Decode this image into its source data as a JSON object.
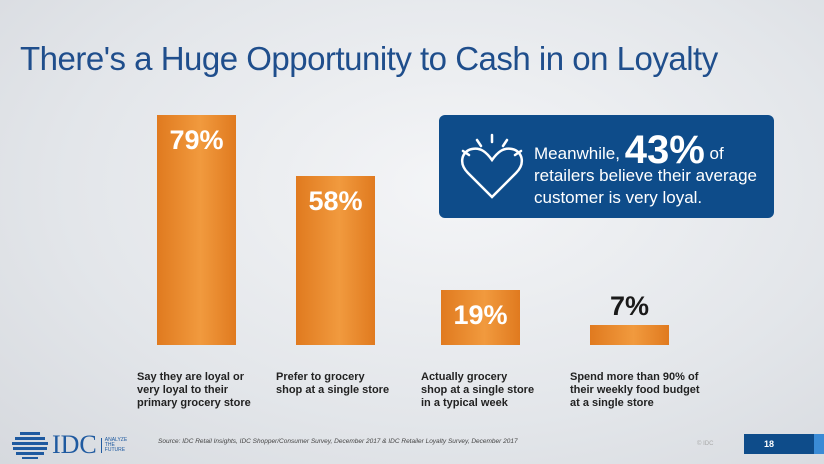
{
  "slide": {
    "title": "There's a Huge Opportunity to Cash in on Loyalty",
    "page_number": "18",
    "copyright": "© IDC",
    "source": "Source: IDC Retail Insights, IDC Shopper/Consumer Survey, December 2017 & IDC Retailer Loyalty Survey, December 2017",
    "logo": {
      "name": "IDC",
      "tagline": [
        "ANALYZE",
        "THE",
        "FUTURE"
      ]
    }
  },
  "callout": {
    "prefix": "Meanwhile,",
    "value": "43%",
    "suffix": "of retailers believe their average customer is very loyal.",
    "icon": "heart-icon"
  },
  "chart_data": {
    "type": "bar",
    "title": "",
    "xlabel": "",
    "ylabel": "",
    "ylim": [
      0,
      79
    ],
    "categories": [
      "Say they are loyal or very loyal to their primary grocery store",
      "Prefer to grocery shop at a single store",
      "Actually grocery shop at a single store in a typical week",
      "Spend more than 90% of their weekly food budget at a single store"
    ],
    "values": [
      79,
      58,
      19,
      7
    ],
    "labels": [
      "79%",
      "58%",
      "19%",
      "7%"
    ],
    "color": "#e8842a"
  }
}
